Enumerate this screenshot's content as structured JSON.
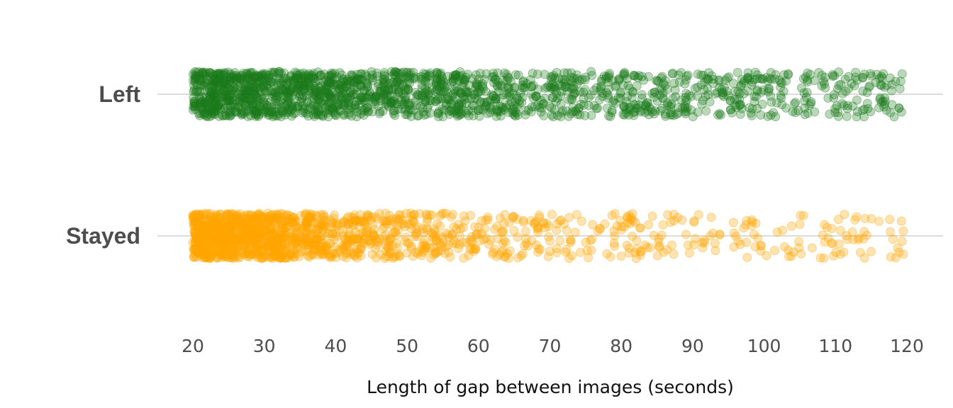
{
  "chart_data": {
    "type": "scatter",
    "title": "",
    "xlabel": "Length of gap between images (seconds)",
    "ylabel": "",
    "xlim": [
      20,
      120
    ],
    "xticks": [
      20,
      30,
      40,
      50,
      60,
      70,
      80,
      90,
      100,
      110,
      120
    ],
    "categories": [
      "Left",
      "Stayed"
    ],
    "grid": "horizontal lines at categories only",
    "legend": "none",
    "series": [
      {
        "category": "Left",
        "color": "#1a7a1a",
        "point_opacity": 0.3,
        "approx_count": 1800,
        "density_note": "dense near 20-45 s, thinning steadily toward 120 s",
        "x_range": [
          20,
          120
        ]
      },
      {
        "category": "Stayed",
        "color": "#ffa500",
        "point_opacity": 0.3,
        "approx_count": 1500,
        "density_note": "very dense near 20-35 s, sparse beyond 70 s",
        "x_range": [
          20,
          120
        ]
      }
    ]
  }
}
